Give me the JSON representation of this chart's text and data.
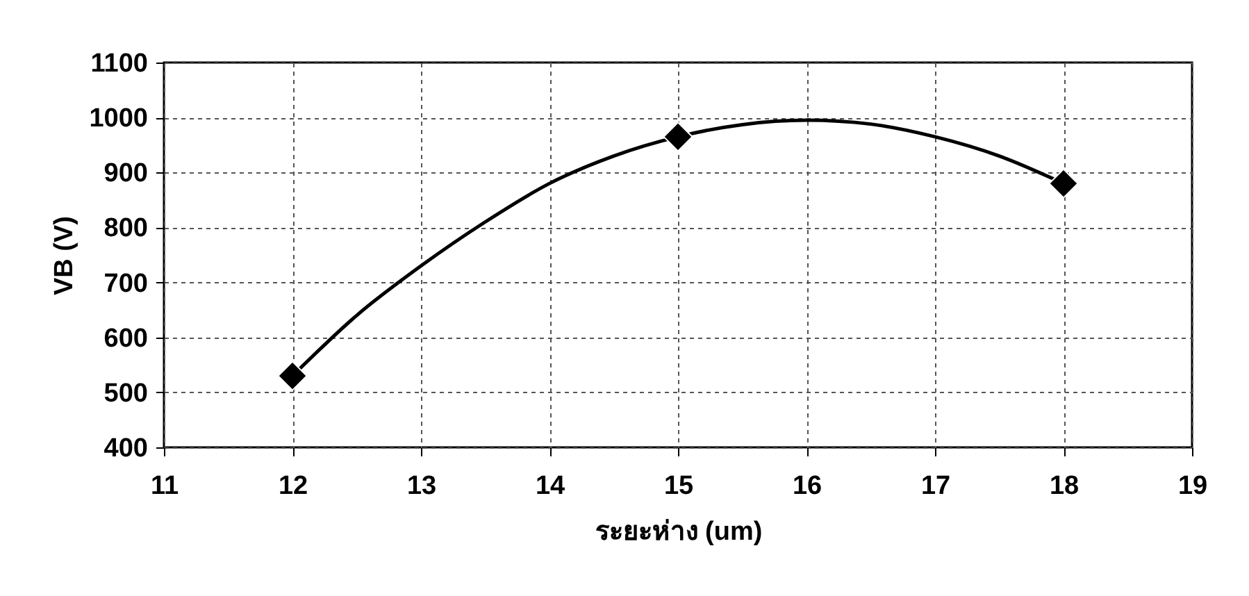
{
  "chart_data": {
    "type": "scatter",
    "xlabel": "ระยะห่าง (um)",
    "ylabel": "VB (V)",
    "xlim": [
      11,
      19
    ],
    "xticks": [
      11,
      12,
      13,
      14,
      15,
      16,
      17,
      18,
      19
    ],
    "ylim": [
      400,
      1100
    ],
    "yticks": [
      400,
      500,
      600,
      700,
      800,
      900,
      1000,
      1100
    ],
    "grid": true,
    "series": [
      {
        "type": "line",
        "color": "#000000",
        "marker": "none",
        "line_style": "solid",
        "x": [
          12,
          12.5,
          13,
          13.5,
          14,
          14.5,
          15,
          15.5,
          16,
          16.5,
          17,
          17.5,
          18
        ],
        "values": [
          530,
          640,
          730,
          810,
          880,
          930,
          965,
          987,
          995,
          988,
          965,
          930,
          880
        ]
      },
      {
        "type": "scatter",
        "color": "#000000",
        "marker": "diamond",
        "x": [
          12,
          15,
          18
        ],
        "values": [
          530,
          965,
          880
        ]
      }
    ]
  }
}
